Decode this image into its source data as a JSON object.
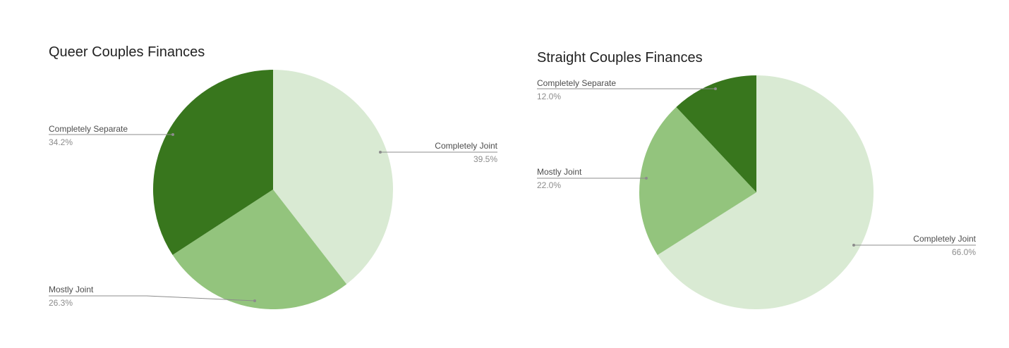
{
  "colors": {
    "completely_joint": "#d9ead3",
    "mostly_joint": "#93c47d",
    "completely_separate": "#38761d",
    "leader_line": "#8c8c8c",
    "title_text": "#222222"
  },
  "chart_data": [
    {
      "type": "pie",
      "title": "Queer Couples Finances",
      "slices": [
        {
          "label": "Completely Joint",
          "value": 39.5,
          "value_label": "39.5%"
        },
        {
          "label": "Mostly Joint",
          "value": 26.3,
          "value_label": "26.3%"
        },
        {
          "label": "Completely Separate",
          "value": 34.2,
          "value_label": "34.2%"
        }
      ]
    },
    {
      "type": "pie",
      "title": "Straight Couples Finances",
      "slices": [
        {
          "label": "Completely Joint",
          "value": 66.0,
          "value_label": "66.0%"
        },
        {
          "label": "Mostly Joint",
          "value": 22.0,
          "value_label": "22.0%"
        },
        {
          "label": "Completely Separate",
          "value": 12.0,
          "value_label": "12.0%"
        }
      ]
    }
  ]
}
